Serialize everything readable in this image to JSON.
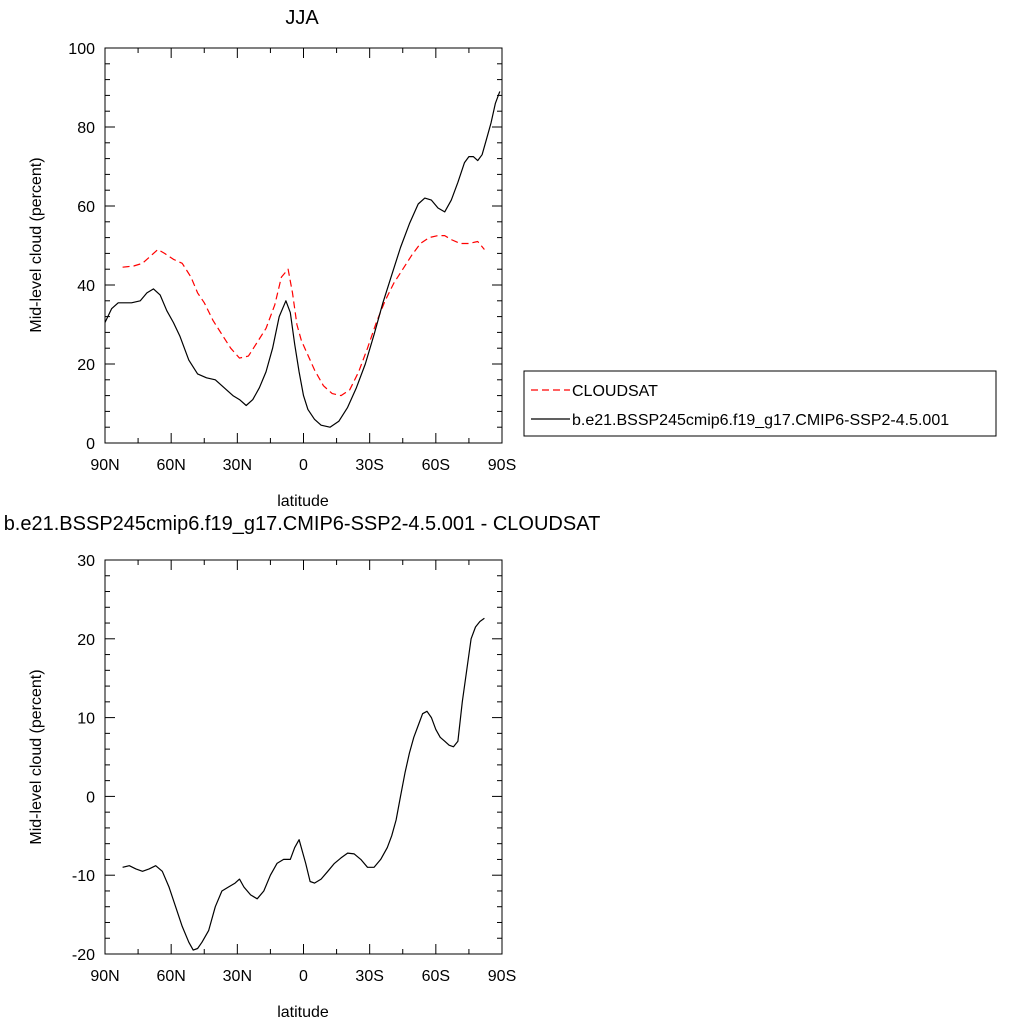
{
  "chart_data": [
    {
      "type": "line",
      "title": "JJA",
      "xlabel": "latitude",
      "ylabel": "Mid-level cloud (percent)",
      "x_axis": "latitude, 90N (-90) to 90S (+90), south positive",
      "xlim": [
        -90,
        90
      ],
      "ylim": [
        0,
        100
      ],
      "xticks": [
        -90,
        -60,
        -30,
        0,
        30,
        60,
        90
      ],
      "xticklabels": [
        "90N",
        "60N",
        "30N",
        "0",
        "30S",
        "60S",
        "90S"
      ],
      "yticks": [
        0,
        20,
        40,
        60,
        80,
        100
      ],
      "yticklabels": [
        "0",
        "20",
        "40",
        "60",
        "80",
        "100"
      ],
      "legend": {
        "placement": "right",
        "entries": [
          "CLOUDSAT",
          "b.e21.BSSP245cmip6.f19_g17.CMIP6-SSP2-4.5.001"
        ]
      },
      "series": [
        {
          "name": "CLOUDSAT",
          "style": "dashed",
          "color": "#ff0000",
          "x": [
            -82,
            -77,
            -73,
            -69,
            -66,
            -63,
            -59,
            -55,
            -51,
            -48,
            -45,
            -41,
            -37,
            -33,
            -29,
            -25,
            -21,
            -17,
            -13,
            -10,
            -7,
            -5,
            -3,
            -1,
            1,
            5,
            9,
            13,
            17,
            21,
            25,
            29,
            33,
            37,
            41,
            45,
            49,
            53,
            57,
            61,
            64,
            67,
            71,
            75,
            79,
            82
          ],
          "y": [
            44.5,
            44.8,
            45.5,
            47.5,
            49,
            48,
            46.5,
            45.5,
            42,
            38,
            35.5,
            31,
            27.5,
            24,
            21.5,
            22,
            25.5,
            29,
            35,
            42,
            44,
            38,
            30,
            26,
            23.5,
            18.5,
            14.5,
            12.5,
            12,
            13.5,
            18,
            24,
            30.5,
            36,
            40.5,
            44,
            47.5,
            50.5,
            52,
            52.5,
            52.5,
            51.5,
            50.5,
            50.5,
            51,
            49
          ]
        },
        {
          "name": "b.e21.BSSP245cmip6.f19_g17.CMIP6-SSP2-4.5.001",
          "style": "solid",
          "color": "#000000",
          "x": [
            -90,
            -87,
            -84,
            -81,
            -78,
            -74,
            -71,
            -68,
            -65,
            -62,
            -59,
            -56,
            -52,
            -48,
            -44,
            -40,
            -36,
            -32,
            -29,
            -26,
            -23,
            -20,
            -17,
            -14,
            -11,
            -8,
            -6,
            -4,
            -2,
            0,
            2,
            5,
            8,
            12,
            16,
            20,
            24,
            28,
            32,
            36,
            40,
            44,
            48,
            52,
            55,
            58,
            61,
            64,
            67,
            70,
            73,
            75,
            77,
            79,
            81,
            83,
            85,
            87,
            89
          ],
          "y": [
            30.5,
            34,
            35.5,
            35.5,
            35.5,
            36,
            38,
            39,
            37.5,
            33.5,
            30.5,
            27,
            21,
            17.5,
            16.5,
            16,
            14,
            12,
            11,
            9.5,
            11,
            14,
            18,
            24,
            32,
            36,
            33,
            25,
            18,
            12,
            8.5,
            6,
            4.5,
            4,
            5.5,
            9,
            14,
            20,
            27.5,
            35.5,
            42.5,
            49.5,
            55.5,
            60.5,
            62,
            61.5,
            59.5,
            58.5,
            61.5,
            66,
            71,
            72.5,
            72.5,
            71.5,
            73,
            77,
            81,
            86,
            89
          ]
        }
      ]
    },
    {
      "type": "line",
      "title": "b.e21.BSSP245cmip6.f19_g17.CMIP6-SSP2-4.5.001 - CLOUDSAT",
      "xlabel": "latitude",
      "ylabel": "Mid-level cloud (percent)",
      "xlim": [
        -90,
        90
      ],
      "ylim": [
        -20,
        30
      ],
      "xticks": [
        -90,
        -60,
        -30,
        0,
        30,
        60,
        90
      ],
      "xticklabels": [
        "90N",
        "60N",
        "30N",
        "0",
        "30S",
        "60S",
        "90S"
      ],
      "yticks": [
        -20,
        -10,
        0,
        10,
        20,
        30
      ],
      "yticklabels": [
        "-20",
        "-10",
        "0",
        "10",
        "20",
        "30"
      ],
      "series": [
        {
          "style": "solid",
          "color": "#000000",
          "x": [
            -82,
            -79,
            -76,
            -73,
            -70,
            -67,
            -64,
            -61,
            -58,
            -55,
            -52,
            -50,
            -48,
            -46,
            -43,
            -40,
            -37,
            -34,
            -31,
            -29,
            -27,
            -24,
            -21,
            -18,
            -15,
            -12,
            -9,
            -6,
            -4,
            -2,
            1,
            3,
            5,
            8,
            11,
            14,
            17,
            20,
            23,
            26,
            29,
            32,
            35,
            38,
            40,
            42,
            44,
            46,
            48,
            50,
            52,
            54,
            56,
            58,
            60,
            62,
            64,
            66,
            68,
            70,
            72,
            74,
            76,
            78,
            80,
            82
          ],
          "y": [
            -9,
            -8.8,
            -9.2,
            -9.5,
            -9.2,
            -8.8,
            -9.5,
            -11.5,
            -14,
            -16.5,
            -18.5,
            -19.5,
            -19.3,
            -18.5,
            -17,
            -14,
            -12,
            -11.5,
            -11,
            -10.5,
            -11.5,
            -12.5,
            -13,
            -12,
            -10,
            -8.5,
            -8,
            -8,
            -6.5,
            -5.5,
            -8.5,
            -10.8,
            -11,
            -10.5,
            -9.5,
            -8.5,
            -7.8,
            -7.2,
            -7.3,
            -8,
            -9,
            -9,
            -8,
            -6.5,
            -5,
            -3,
            0,
            3,
            5.5,
            7.5,
            9,
            10.5,
            10.8,
            10,
            8.5,
            7.5,
            7,
            6.5,
            6.3,
            7,
            12,
            16,
            20,
            21.5,
            22.2,
            22.6
          ]
        }
      ]
    }
  ]
}
